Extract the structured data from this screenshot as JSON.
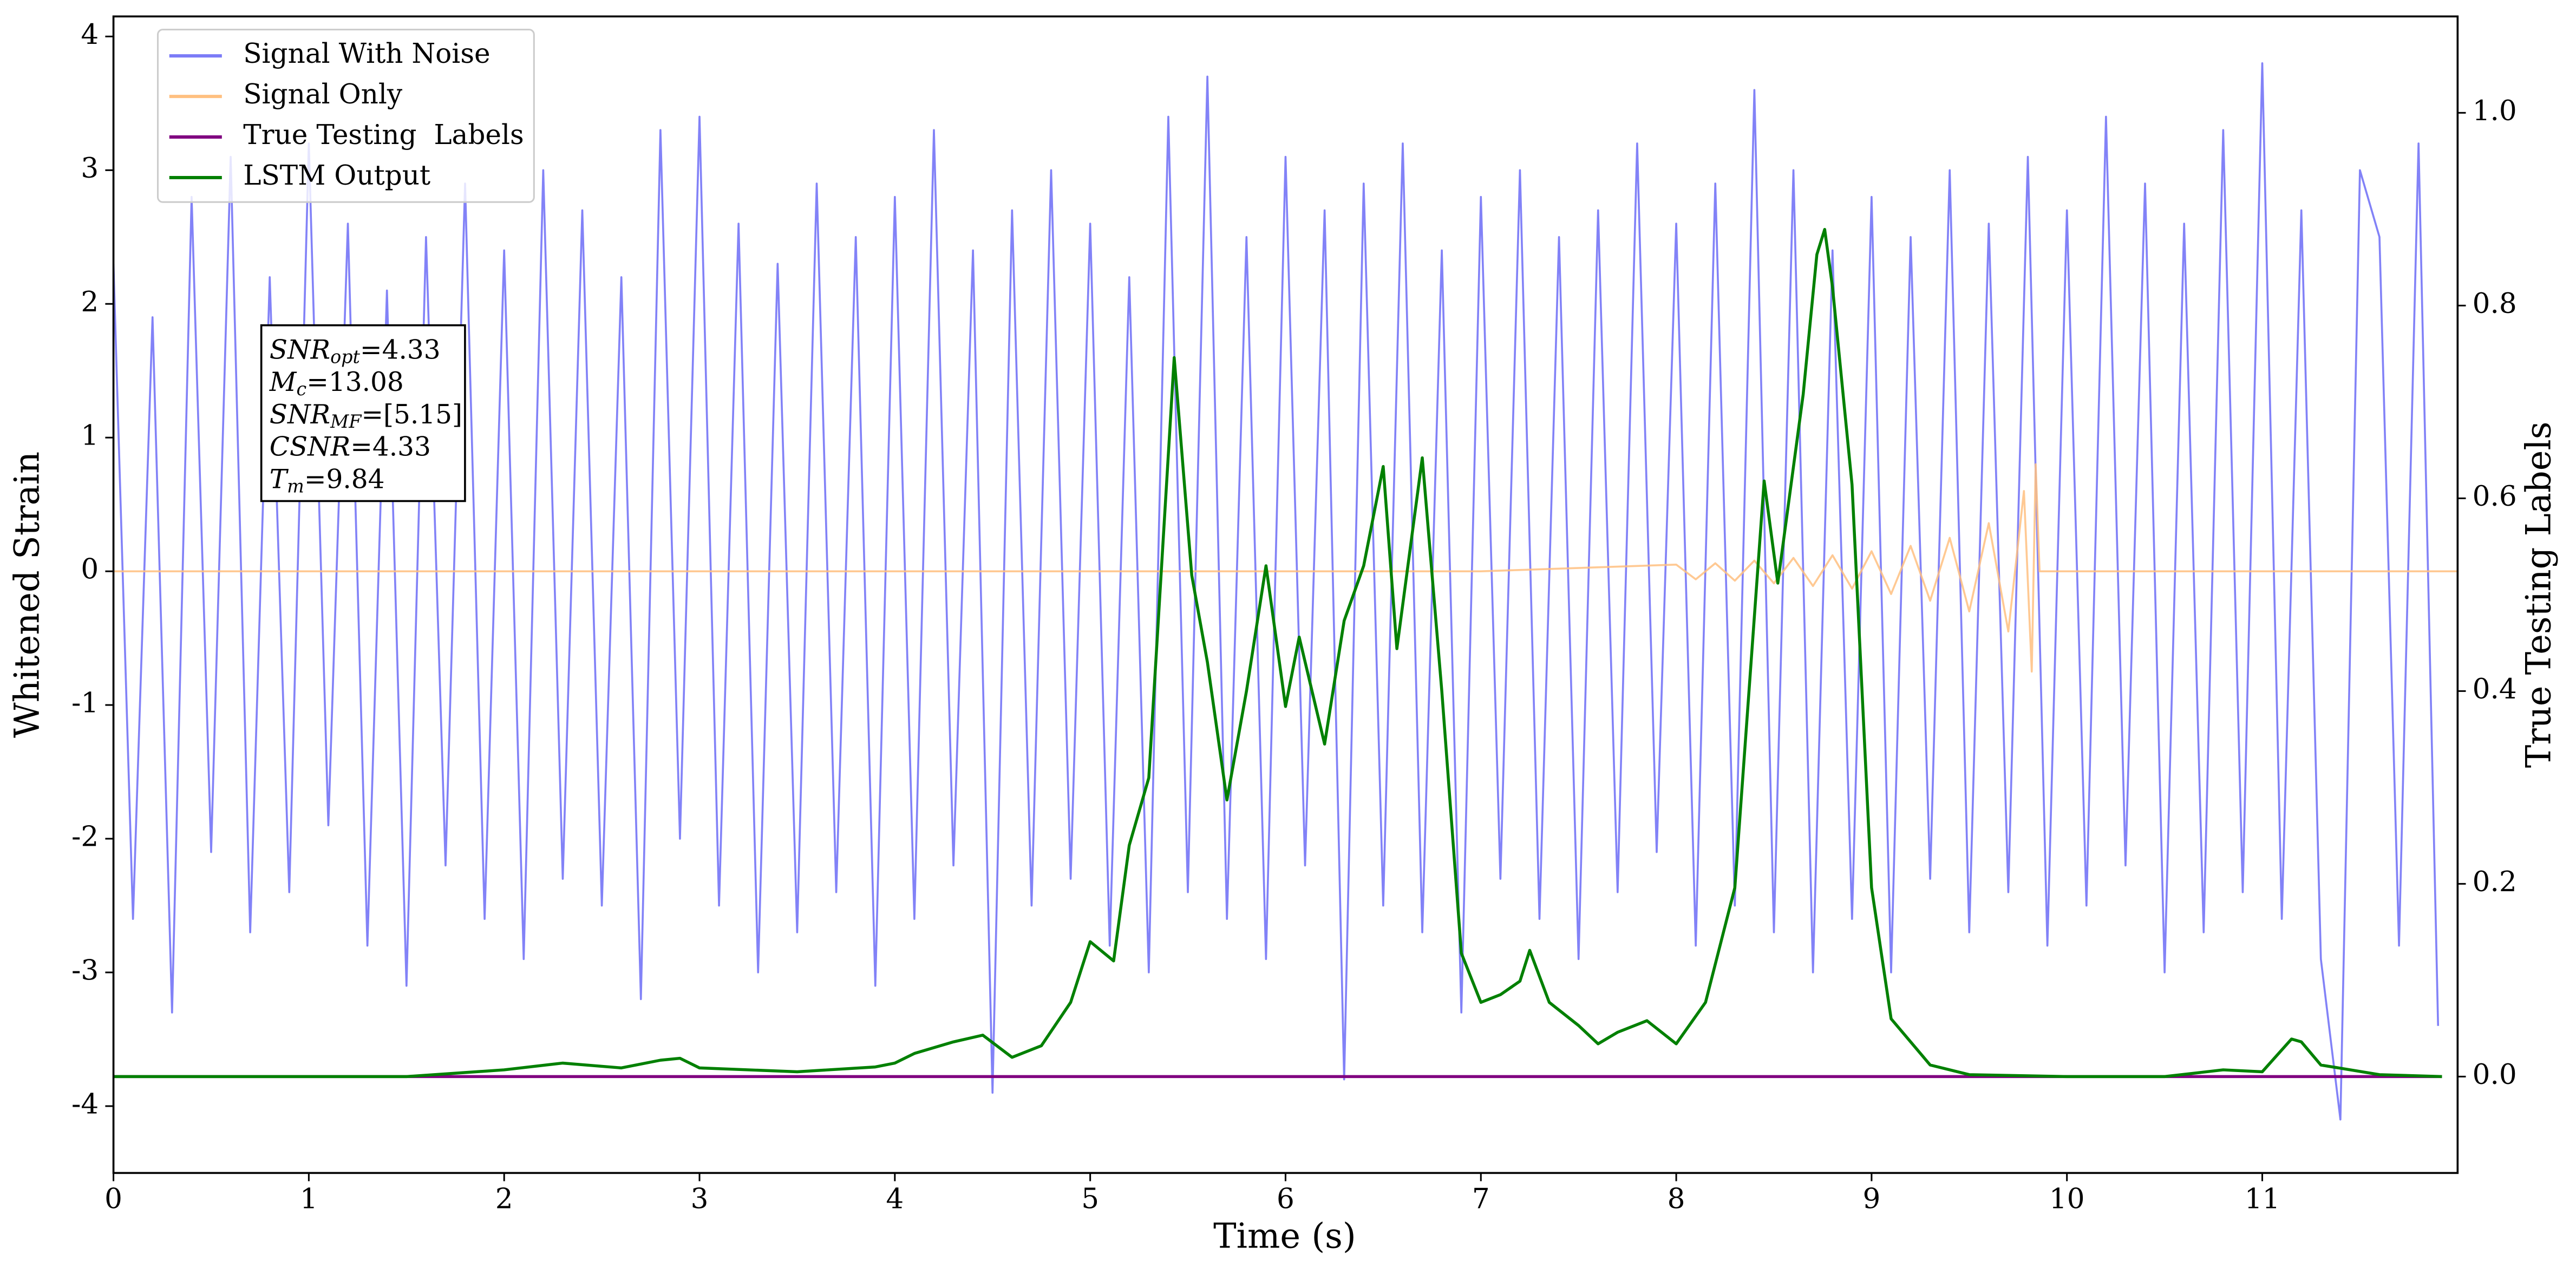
{
  "chart_data": {
    "type": "line",
    "xlabel": "Time (s)",
    "ylabel": "Whitened Strain",
    "y2label": "True Testing Labels",
    "xlim": [
      0,
      12
    ],
    "xticks": [
      0,
      1,
      2,
      3,
      4,
      5,
      6,
      7,
      8,
      9,
      10,
      11
    ],
    "ylim": [
      -4.5,
      4.15
    ],
    "yticks": [
      -4,
      -3,
      -2,
      -1,
      0,
      1,
      2,
      3,
      4
    ],
    "y2lim": [
      -0.1,
      1.1
    ],
    "y2ticks": [
      {
        "value": 0,
        "label": "0.0"
      },
      0.2,
      0.4,
      0.6,
      0.8,
      {
        "value": 1,
        "label": "1.0"
      }
    ],
    "legend": "upper left",
    "grid": false,
    "annotation": [
      {
        "main": "SNR",
        "sub": "opt",
        "text": "=4.33"
      },
      {
        "main": "M",
        "sub": "c",
        "text": "=13.08"
      },
      {
        "main": "SNR",
        "sub": "MF",
        "text": "=[5.15]"
      },
      {
        "main": "CSNR",
        "sub": null,
        "text": "=4.33"
      },
      {
        "main": "T",
        "sub": "m",
        "text": "=9.84"
      }
    ],
    "series": [
      {
        "name": "Signal With Noise",
        "color": "#7b7bf7",
        "x": [
          0,
          0.1,
          0.2,
          0.3,
          0.4,
          0.5,
          0.6,
          0.7,
          0.8,
          0.9,
          1,
          1.1,
          1.2,
          1.3,
          1.4,
          1.5,
          1.6,
          1.7,
          1.8,
          1.9,
          2,
          2.1,
          2.2,
          2.3,
          2.4,
          2.5,
          2.6,
          2.7,
          2.8,
          2.9,
          3,
          3.1,
          3.2,
          3.3,
          3.4,
          3.5,
          3.6,
          3.7,
          3.8,
          3.9,
          4,
          4.1,
          4.2,
          4.3,
          4.4,
          4.5,
          4.6,
          4.7,
          4.8,
          4.9,
          5,
          5.1,
          5.2,
          5.3,
          5.4,
          5.5,
          5.6,
          5.7,
          5.8,
          5.9,
          6,
          6.1,
          6.2,
          6.3,
          6.4,
          6.5,
          6.6,
          6.7,
          6.8,
          6.9,
          7,
          7.1,
          7.2,
          7.3,
          7.4,
          7.5,
          7.6,
          7.7,
          7.8,
          7.9,
          8,
          8.1,
          8.2,
          8.3,
          8.4,
          8.5,
          8.6,
          8.7,
          8.8,
          8.9,
          9,
          9.1,
          9.2,
          9.3,
          9.4,
          9.5,
          9.6,
          9.7,
          9.8,
          9.9,
          10,
          10.1,
          10.2,
          10.3,
          10.4,
          10.5,
          10.6,
          10.7,
          10.8,
          10.9,
          11,
          11.1,
          11.2,
          11.3,
          11.4,
          11.5,
          11.6,
          11.7,
          11.8,
          11.9
        ],
        "values": [
          2.3,
          -2.6,
          1.9,
          -3.3,
          2.8,
          -2.1,
          3.1,
          -2.7,
          2.2,
          -2.4,
          3.2,
          -1.9,
          2.6,
          -2.8,
          2.1,
          -3.1,
          2.5,
          -2.2,
          2.9,
          -2.6,
          2.4,
          -2.9,
          3.0,
          -2.3,
          2.7,
          -2.5,
          2.2,
          -3.2,
          3.3,
          -2.0,
          3.4,
          -2.5,
          2.6,
          -3.0,
          2.3,
          -2.7,
          2.9,
          -2.4,
          2.5,
          -3.1,
          2.8,
          -2.6,
          3.3,
          -2.2,
          2.4,
          -3.9,
          2.7,
          -2.5,
          3.0,
          -2.3,
          2.6,
          -2.8,
          2.2,
          -3.0,
          3.4,
          -2.4,
          3.7,
          -2.6,
          2.5,
          -2.9,
          3.1,
          -2.2,
          2.7,
          -3.8,
          2.9,
          -2.5,
          3.2,
          -2.7,
          2.4,
          -3.3,
          2.8,
          -2.3,
          3.0,
          -2.6,
          2.5,
          -2.9,
          2.7,
          -2.4,
          3.2,
          -2.1,
          2.6,
          -2.8,
          2.9,
          -2.5,
          3.6,
          -2.7,
          3.0,
          -3.0,
          2.4,
          -2.6,
          2.8,
          -3.0,
          2.5,
          -2.3,
          3.0,
          -2.7,
          2.6,
          -2.4,
          3.1,
          -2.8,
          2.7,
          -2.5,
          3.4,
          -2.2,
          2.9,
          -3.0,
          2.6,
          -2.7,
          3.3,
          -2.4,
          3.8,
          -2.6,
          2.7,
          -2.9,
          -4.1,
          3.0,
          2.5,
          -2.8,
          3.2,
          -3.4
        ]
      },
      {
        "name": "Signal Only",
        "color": "#ffc080",
        "x": [
          0,
          7,
          8,
          8.1,
          8.2,
          8.3,
          8.4,
          8.5,
          8.6,
          8.7,
          8.8,
          8.9,
          9,
          9.1,
          9.2,
          9.3,
          9.4,
          9.5,
          9.6,
          9.7,
          9.78,
          9.82,
          9.84,
          9.86,
          12
        ],
        "values": [
          0,
          0,
          0.05,
          -0.06,
          0.06,
          -0.07,
          0.08,
          -0.09,
          0.1,
          -0.11,
          0.12,
          -0.13,
          0.15,
          -0.17,
          0.19,
          -0.22,
          0.25,
          -0.3,
          0.36,
          -0.45,
          0.6,
          -0.75,
          0.8,
          0,
          0
        ]
      },
      {
        "name": "True Testing  Labels",
        "color": "#800080",
        "axis": "y2",
        "x": [
          0,
          11.92
        ],
        "values": [
          0,
          0
        ]
      },
      {
        "name": "LSTM Output",
        "color": "#008000",
        "axis": "y2",
        "x": [
          0,
          1.5,
          2,
          2.3,
          2.6,
          2.8,
          2.9,
          3,
          3.5,
          3.9,
          4,
          4.1,
          4.3,
          4.45,
          4.6,
          4.75,
          4.9,
          5,
          5.12,
          5.2,
          5.3,
          5.43,
          5.52,
          5.6,
          5.7,
          5.8,
          5.9,
          6,
          6.07,
          6.2,
          6.3,
          6.4,
          6.5,
          6.57,
          6.7,
          6.8,
          6.9,
          7,
          7.1,
          7.2,
          7.25,
          7.35,
          7.5,
          7.6,
          7.7,
          7.85,
          8,
          8.15,
          8.3,
          8.45,
          8.52,
          8.65,
          8.72,
          8.76,
          8.8,
          8.9,
          9,
          9.1,
          9.3,
          9.5,
          10,
          10.5,
          10.8,
          11,
          11.15,
          11.2,
          11.3,
          11.6,
          11.92
        ],
        "values": [
          0,
          0,
          0.007,
          0.014,
          0.009,
          0.017,
          0.019,
          0.009,
          0.005,
          0.01,
          0.014,
          0.024,
          0.036,
          0.043,
          0.02,
          0.032,
          0.077,
          0.14,
          0.12,
          0.24,
          0.31,
          0.746,
          0.52,
          0.43,
          0.287,
          0.4,
          0.53,
          0.384,
          0.456,
          0.345,
          0.473,
          0.53,
          0.633,
          0.444,
          0.642,
          0.4,
          0.128,
          0.077,
          0.085,
          0.099,
          0.131,
          0.077,
          0.053,
          0.034,
          0.046,
          0.058,
          0.034,
          0.077,
          0.196,
          0.618,
          0.512,
          0.708,
          0.853,
          0.879,
          0.819,
          0.614,
          0.196,
          0.06,
          0.012,
          0.002,
          0,
          0,
          0.007,
          0.005,
          0.039,
          0.036,
          0.012,
          0.002,
          0
        ]
      }
    ]
  }
}
